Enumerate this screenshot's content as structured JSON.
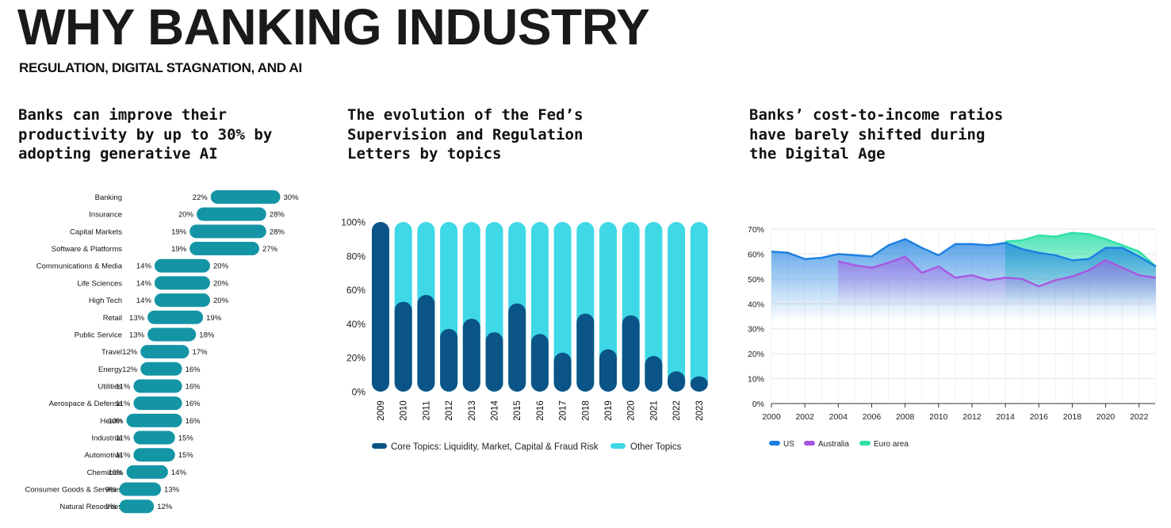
{
  "page": {
    "title": "WHY BANKING INDUSTRY",
    "subtitle": "REGULATION, DIGITAL STAGNATION, AND AI"
  },
  "panel1": {
    "heading_lines": [
      "Banks can improve their",
      "productivity by up to 30% by",
      "adopting generative AI"
    ]
  },
  "panel2": {
    "heading_lines": [
      "The evolution of the Fed’s",
      "Supervision and Regulation",
      "Letters by topics"
    ]
  },
  "panel3": {
    "heading_lines": [
      "Banks’ cost-to-income ratios",
      "have barely shifted during",
      "the Digital Age"
    ]
  },
  "colors": {
    "teal": "#1495a5",
    "core": "#0a5487",
    "other": "#3fd8e6",
    "us": "#1a7fe0",
    "australia": "#a857e0",
    "euro": "#2fe0a8"
  },
  "chart_data": [
    {
      "type": "bar",
      "orientation": "horizontal-range",
      "categories": [
        "Banking",
        "Insurance",
        "Capital Markets",
        "Software & Platforms",
        "Communications & Media",
        "Life Sciences",
        "High Tech",
        "Retail",
        "Public Service",
        "Travel",
        "Energy",
        "Utilities",
        "Aerospace & Defense",
        "Health",
        "Industrial",
        "Automotive",
        "Chemicals",
        "Consumer Goods & Services",
        "Natural Resources"
      ],
      "series": [
        {
          "values": [
            22,
            20,
            19,
            19,
            14,
            14,
            14,
            13,
            13,
            12,
            12,
            11,
            11,
            10,
            11,
            11,
            10,
            9,
            9
          ]
        },
        {
          "values": [
            30,
            28,
            28,
            27,
            20,
            20,
            20,
            19,
            18,
            17,
            16,
            16,
            16,
            16,
            15,
            15,
            14,
            13,
            12
          ]
        }
      ],
      "value_labels_low": [
        "22%",
        "20%",
        "19%",
        "19%",
        "14%",
        "14%",
        "14%",
        "13%",
        "13%",
        "12%",
        "12%",
        "11%",
        "11%",
        "10%",
        "11%",
        "11%",
        "10%",
        "9%",
        "9%"
      ],
      "value_labels_high": [
        "30%",
        "28%",
        "28%",
        "27%",
        "20%",
        "20%",
        "20%",
        "19%",
        "18%",
        "17%",
        "16%",
        "16%",
        "16%",
        "16%",
        "15%",
        "15%",
        "14%",
        "13%",
        "12%"
      ]
    },
    {
      "type": "bar",
      "stacked": true,
      "categories": [
        "2009",
        "2010",
        "2011",
        "2012",
        "2013",
        "2014",
        "2015",
        "2016",
        "2017",
        "2018",
        "2019",
        "2020",
        "2021",
        "2022",
        "2023"
      ],
      "series": [
        {
          "name": "Core Topics: Liquidity, Market, Capital & Fraud Risk",
          "values": [
            100,
            53,
            57,
            37,
            43,
            35,
            52,
            34,
            23,
            46,
            25,
            45,
            21,
            12,
            9
          ]
        },
        {
          "name": "Other Topics",
          "values": [
            0,
            47,
            43,
            63,
            57,
            65,
            48,
            66,
            77,
            54,
            75,
            55,
            79,
            88,
            91
          ]
        }
      ],
      "yticks": [
        "0%",
        "20%",
        "40%",
        "60%",
        "80%",
        "100%"
      ],
      "ylim": [
        0,
        100
      ],
      "legend": "bottom"
    },
    {
      "type": "area",
      "x": [
        2000,
        2001,
        2002,
        2003,
        2004,
        2005,
        2006,
        2007,
        2008,
        2009,
        2010,
        2011,
        2012,
        2013,
        2014,
        2015,
        2016,
        2017,
        2018,
        2019,
        2020,
        2021,
        2022,
        2023
      ],
      "series": [
        {
          "name": "US",
          "values": [
            61,
            60.5,
            58,
            58.5,
            60,
            59.5,
            59,
            63.5,
            66,
            62.5,
            59.5,
            64,
            64,
            63.5,
            64.5,
            62,
            60.5,
            59.5,
            57.5,
            58,
            62.5,
            62.5,
            59,
            55
          ]
        },
        {
          "name": "Australia",
          "values": [
            null,
            null,
            null,
            null,
            57,
            55.5,
            54.5,
            56.5,
            59,
            52.5,
            55,
            50.5,
            51.5,
            49.5,
            50.5,
            50,
            47,
            49.5,
            51,
            53.5,
            57.5,
            54.5,
            51.5,
            50.5
          ]
        },
        {
          "name": "Euro area",
          "values": [
            null,
            null,
            null,
            null,
            null,
            null,
            null,
            null,
            null,
            null,
            null,
            null,
            null,
            null,
            65,
            65.5,
            67.5,
            67,
            68.5,
            68,
            66,
            63.5,
            61,
            55
          ]
        }
      ],
      "xticks": [
        "2000",
        "2002",
        "2004",
        "2006",
        "2008",
        "2010",
        "2012",
        "2014",
        "2016",
        "2018",
        "2020",
        "2022"
      ],
      "yticks": [
        "0%",
        "10%",
        "20%",
        "30%",
        "40%",
        "50%",
        "60%",
        "70%"
      ],
      "ylim": [
        0,
        70
      ],
      "grid": true,
      "legend": "bottom-left"
    }
  ]
}
